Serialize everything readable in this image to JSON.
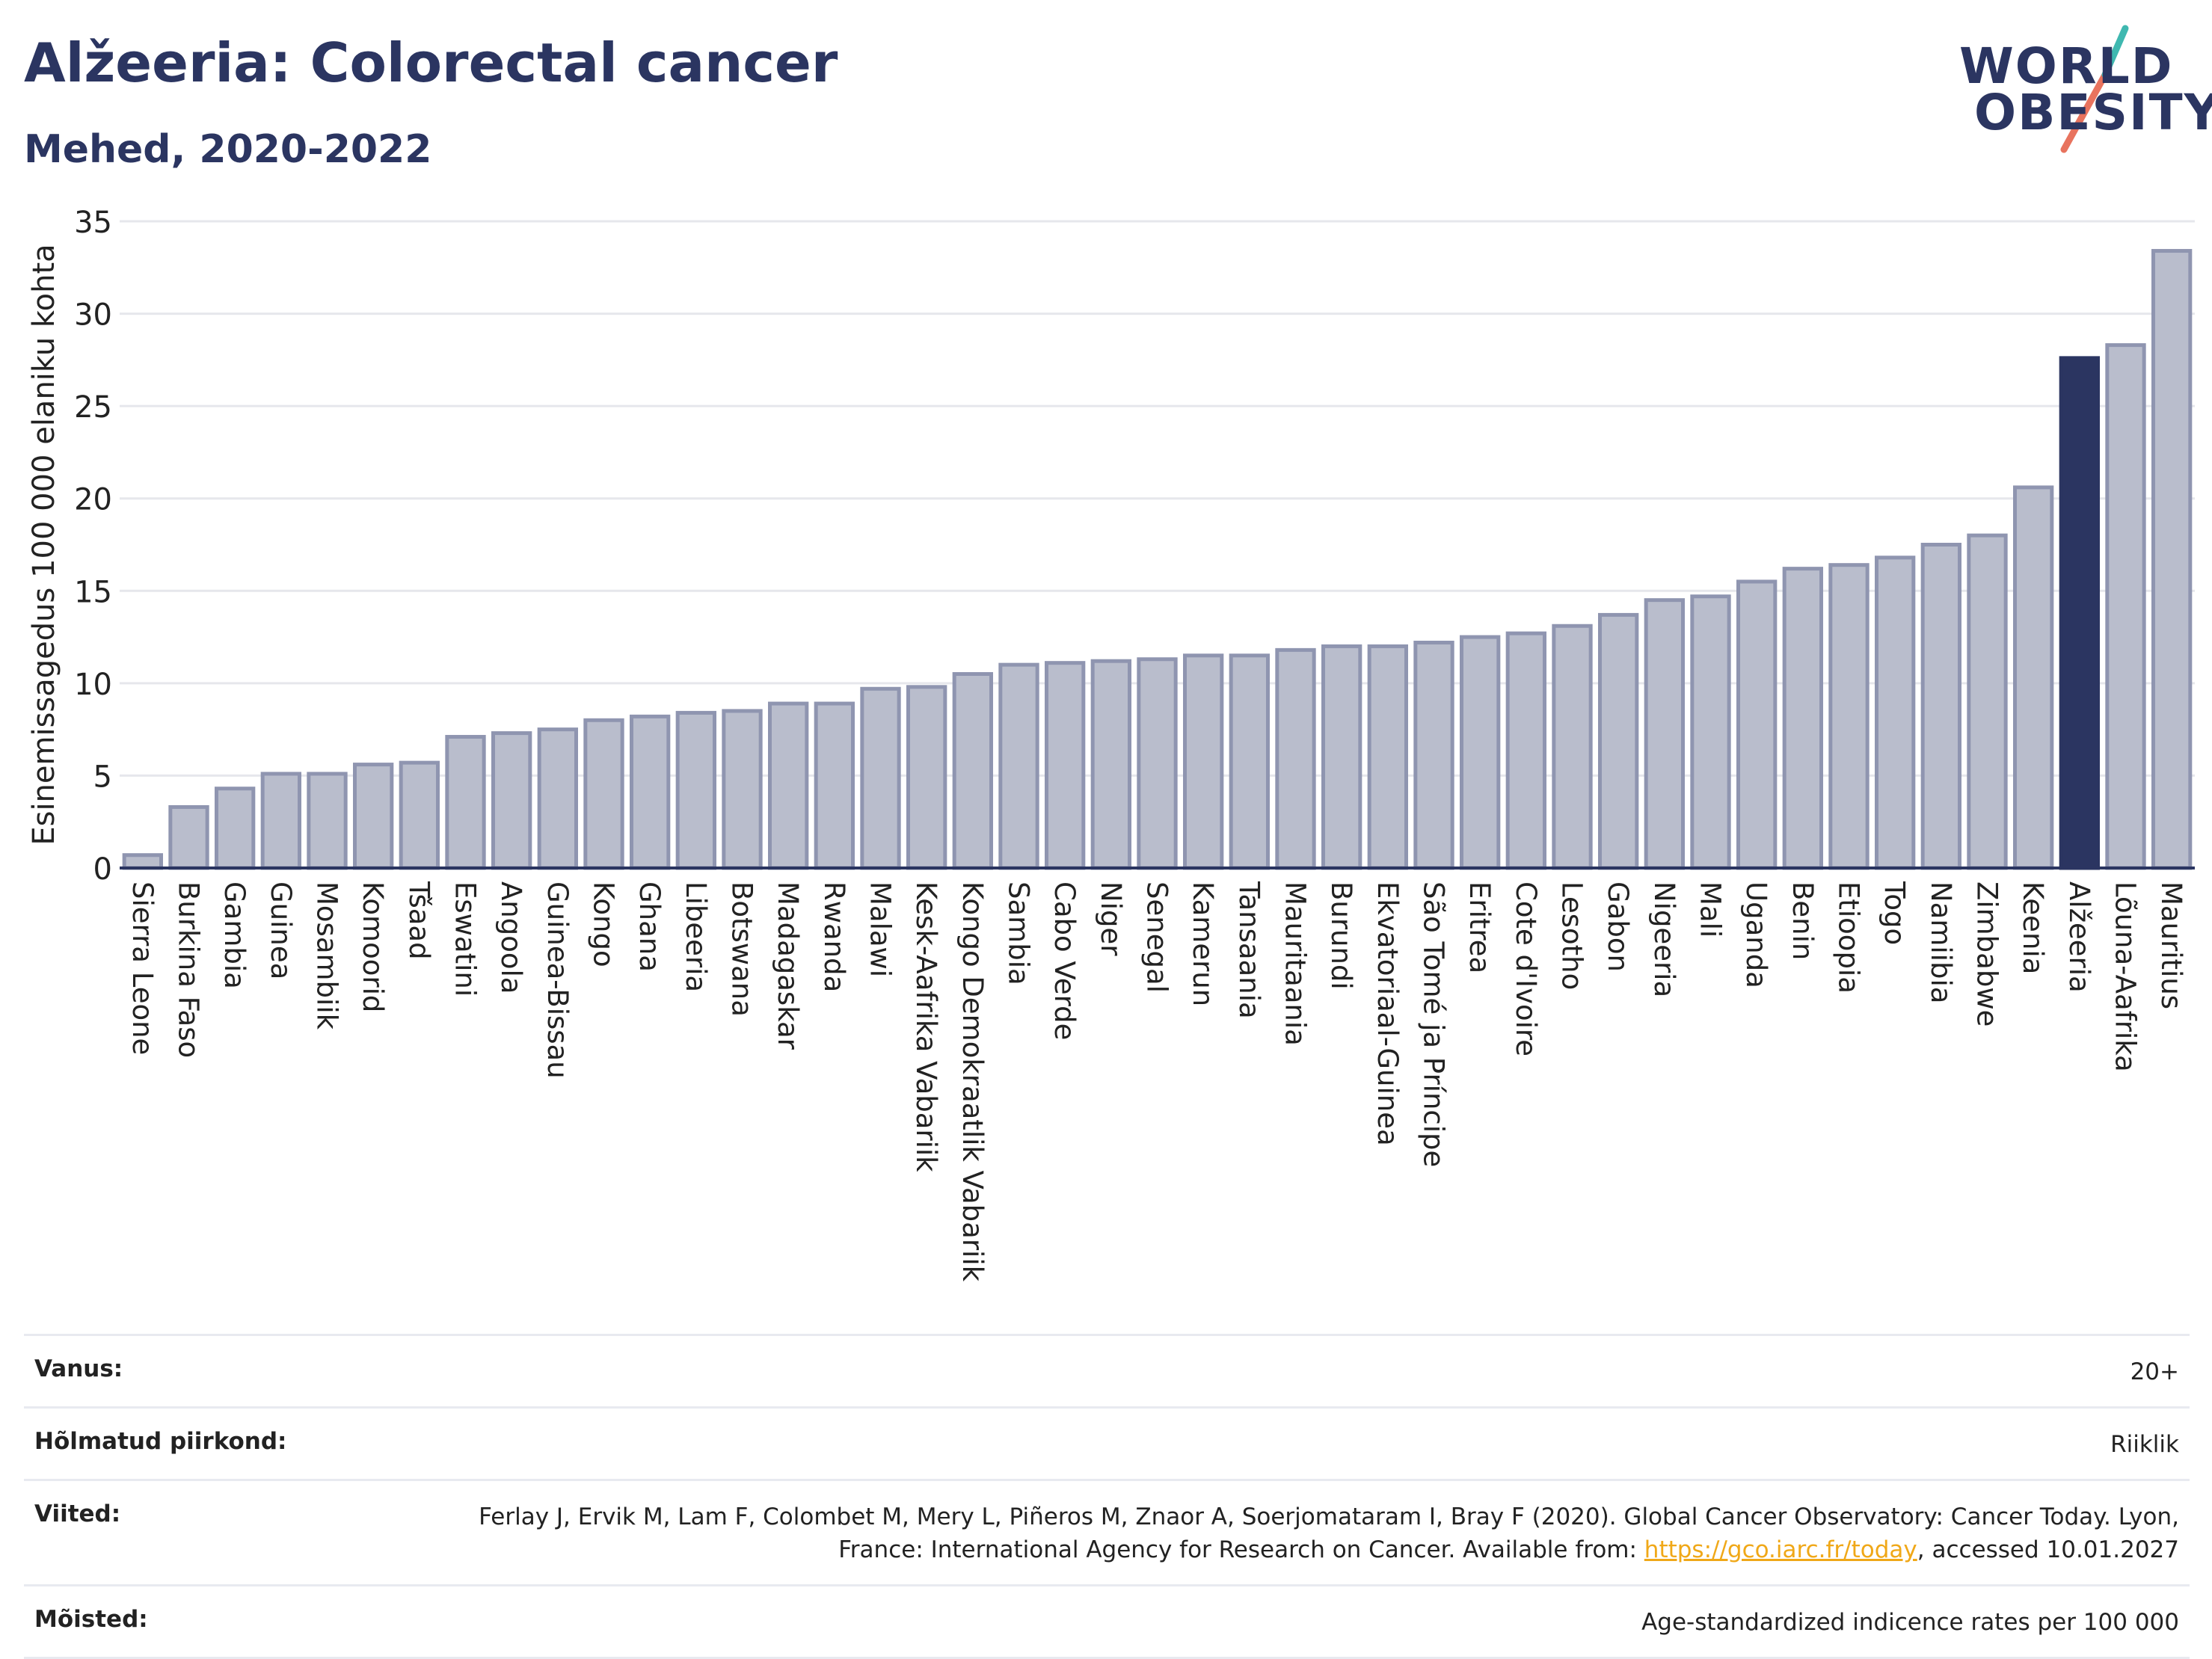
{
  "header": {
    "title": "Alžeeria: Colorectal cancer",
    "subtitle": "Mehed, 2020-2022"
  },
  "logo": {
    "line1": "WORLD",
    "line2": "OBESITY"
  },
  "colors": {
    "bar": "#b9bdcc",
    "bar_border": "#8f95b0",
    "highlight": "#2b3561",
    "grid": "#e6e7ec",
    "text": "#2b3561",
    "logo_teal": "#3fb8b0",
    "logo_coral": "#e8735e"
  },
  "chart_data": {
    "type": "bar",
    "ylabel": "Esinemissagedus 100 000 elaniku kohta",
    "ylim": [
      0,
      35
    ],
    "yticks": [
      0,
      5,
      10,
      15,
      20,
      25,
      30,
      35
    ],
    "grid": true,
    "highlight": "Alžeeria",
    "categories": [
      "Sierra Leone",
      "Burkina Faso",
      "Gambia",
      "Guinea",
      "Mosambiik",
      "Komoorid",
      "Tšaad",
      "Eswatini",
      "Angoola",
      "Guinea-Bissau",
      "Kongo",
      "Ghana",
      "Libeeria",
      "Botswana",
      "Madagaskar",
      "Rwanda",
      "Malawi",
      "Kesk-Aafrika Vabariik",
      "Kongo Demokraatlik Vabariik",
      "Sambia",
      "Cabo Verde",
      "Niger",
      "Senegal",
      "Kamerun",
      "Tansaania",
      "Mauritaania",
      "Burundi",
      "Ekvatoriaal-Guinea",
      "São Tomé ja Príncipe",
      "Eritrea",
      "Cote d'Ivoire",
      "Lesotho",
      "Gabon",
      "Nigeeria",
      "Mali",
      "Uganda",
      "Benin",
      "Etioopia",
      "Togo",
      "Namiibia",
      "Zimbabwe",
      "Keenia",
      "Alžeeria",
      "Lõuna-Aafrika",
      "Mauritius"
    ],
    "values": [
      0.7,
      3.3,
      4.3,
      5.1,
      5.1,
      5.6,
      5.7,
      7.1,
      7.3,
      7.5,
      8.0,
      8.2,
      8.4,
      8.5,
      8.9,
      8.9,
      9.7,
      9.8,
      10.5,
      11.0,
      11.1,
      11.2,
      11.3,
      11.5,
      11.5,
      11.8,
      12.0,
      12.0,
      12.2,
      12.5,
      12.7,
      13.1,
      13.7,
      14.5,
      14.7,
      15.5,
      16.2,
      16.4,
      16.8,
      17.5,
      18.0,
      20.6,
      27.6,
      28.3,
      33.4
    ]
  },
  "footer": {
    "rows": [
      {
        "label": "Vanus:",
        "value": "20+"
      },
      {
        "label": "Hõlmatud piirkond:",
        "value": "Riiklik"
      },
      {
        "label": "Viited:",
        "value_pre": "Ferlay J, Ervik M, Lam F, Colombet M, Mery L, Piñeros M, Znaor A, Soerjomataram I, Bray F (2020). Global Cancer Observatory: Cancer Today. Lyon, France: International Agency for Research on Cancer. Available from: ",
        "link": "https://gco.iarc.fr/today",
        "value_post": ", accessed 10.01.2027"
      },
      {
        "label": "Mõisted:",
        "value": "Age-standardized indicence rates per 100 000"
      }
    ]
  }
}
